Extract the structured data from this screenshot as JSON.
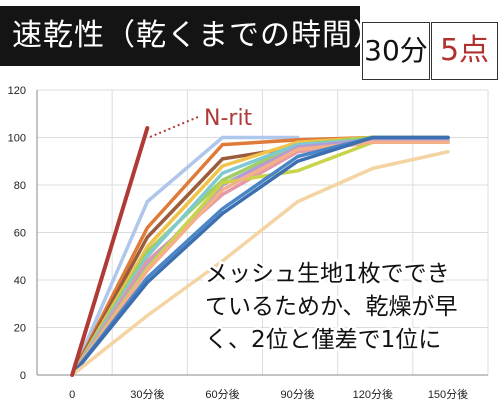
{
  "header": {
    "title": "速乾性（乾くまでの時間）",
    "time_label": "30分",
    "score_label": "5点"
  },
  "colors": {
    "title_bg": "#141414",
    "highlight": "#a8403c"
  },
  "chart_data": {
    "type": "line",
    "x": [
      "0",
      "30分後",
      "60分後",
      "90分後",
      "120分後",
      "150分後"
    ],
    "ylim": [
      0,
      120
    ],
    "yticks": [
      0,
      20,
      40,
      60,
      80,
      100,
      120
    ],
    "grid": true,
    "annotations": {
      "highlight_label": "N-rit",
      "text_lines": [
        "メッシュ生地1枚ででき",
        "ているためか、乾燥が早",
        "く、2位と僅差で1位に"
      ]
    },
    "series": [
      {
        "color": "#b03a36",
        "values": [
          0,
          104,
          null,
          null,
          null,
          null
        ]
      },
      {
        "color": "#aec7ea",
        "values": [
          0,
          73,
          100,
          100,
          null,
          null
        ]
      },
      {
        "color": "#e07a38",
        "values": [
          0,
          62,
          97,
          99,
          100,
          100
        ]
      },
      {
        "color": "#9b5c3c",
        "values": [
          0,
          58,
          91,
          96,
          100,
          100
        ]
      },
      {
        "color": "#f2c34a",
        "values": [
          0,
          54,
          88,
          98,
          100,
          100
        ]
      },
      {
        "color": "#9fcf63",
        "values": [
          0,
          52,
          82,
          97,
          100,
          100
        ]
      },
      {
        "color": "#7fcad0",
        "values": [
          0,
          50,
          85,
          97,
          99,
          99
        ]
      },
      {
        "color": "#e39aa6",
        "values": [
          0,
          48,
          76,
          94,
          98,
          98
        ]
      },
      {
        "color": "#b59bd6",
        "values": [
          0,
          46,
          80,
          96,
          99,
          99
        ]
      },
      {
        "color": "#c8d44a",
        "values": [
          0,
          45,
          81,
          86,
          98,
          98
        ]
      },
      {
        "color": "#f5b08a",
        "values": [
          0,
          44,
          78,
          95,
          98,
          98
        ]
      },
      {
        "color": "#4a86c5",
        "values": [
          0,
          41,
          70,
          92,
          100,
          100
        ]
      },
      {
        "color": "#3c6fb0",
        "values": [
          0,
          39,
          68,
          90,
          100,
          100
        ]
      },
      {
        "color": "#f3d4a2",
        "values": [
          0,
          25,
          48,
          73,
          87,
          94
        ]
      }
    ]
  }
}
